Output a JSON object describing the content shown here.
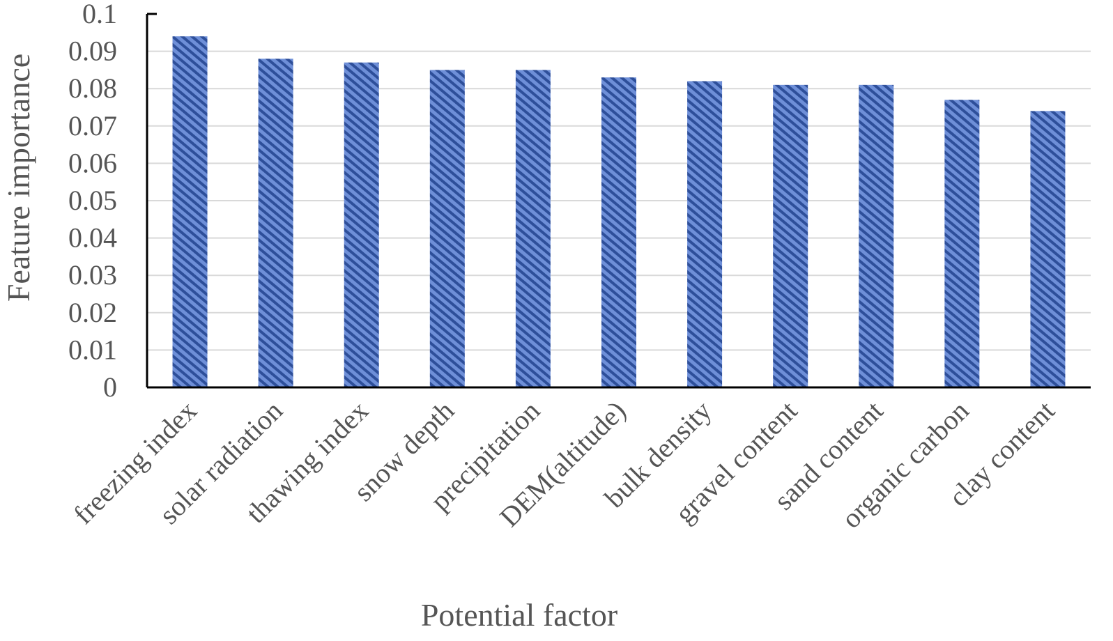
{
  "chart_data": {
    "type": "bar",
    "title": "",
    "xlabel": "Potential factor",
    "ylabel": "Feature importance",
    "categories": [
      "freezing index",
      "solar radiation",
      "thawing index",
      "snow depth",
      "precipitation",
      "DEM(altitude)",
      "bulk density",
      "gravel content",
      "sand content",
      "organic carbon",
      "clay content"
    ],
    "values": [
      0.094,
      0.088,
      0.087,
      0.085,
      0.085,
      0.083,
      0.082,
      0.081,
      0.081,
      0.077,
      0.074
    ],
    "ylim": [
      0,
      0.1
    ],
    "yticks": [
      "0",
      "0.01",
      "0.02",
      "0.03",
      "0.04",
      "0.05",
      "0.06",
      "0.07",
      "0.08",
      "0.09",
      "0.1"
    ],
    "grid": true,
    "legend": "none",
    "colors": {
      "bar_fill": "#6e8fd8",
      "bar_hatch": "#2e4f9a",
      "grid": "#d9d9d9",
      "axis": "#000000"
    }
  }
}
